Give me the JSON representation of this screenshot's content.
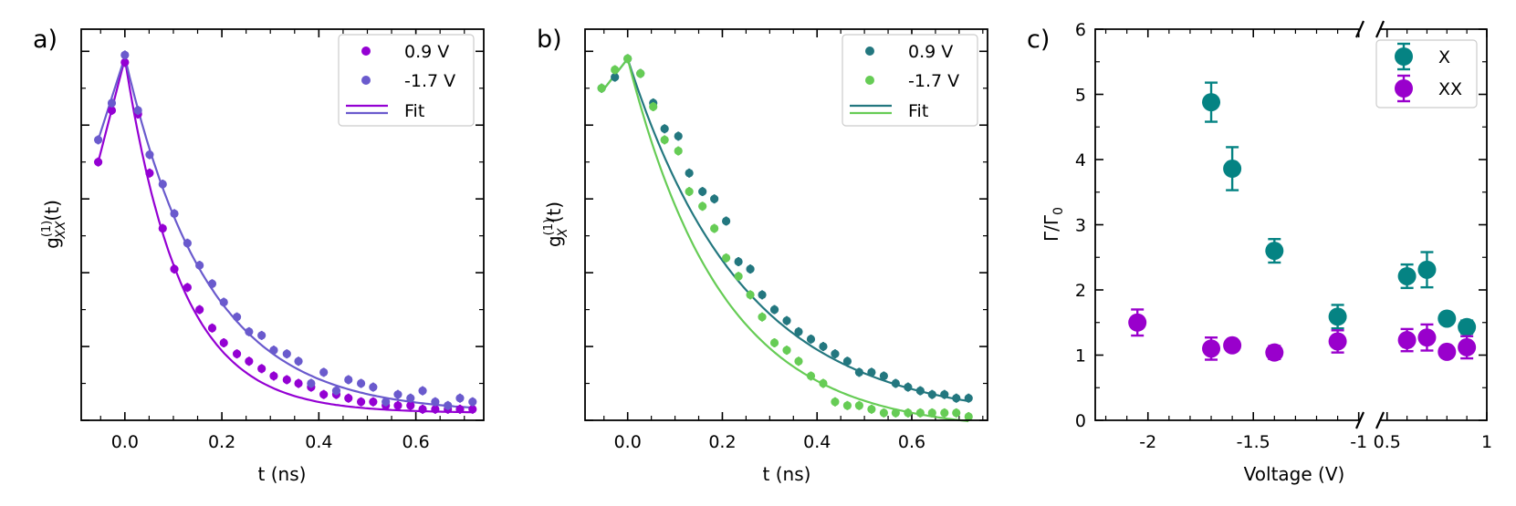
{
  "chart_data": [
    {
      "panel": "a)",
      "type": "scatter",
      "xlabel": "t (ns)",
      "ylabel": "g(1)XX(t)",
      "ylabel_parts": {
        "base": "g",
        "sup": "(1)",
        "sub": "XX",
        "tail": "(t)"
      },
      "xlim": [
        -0.09,
        0.74
      ],
      "ylim": [
        0.0,
        1.06
      ],
      "xticks": [
        0.0,
        0.2,
        0.4,
        0.6
      ],
      "xtick_labels": [
        "0.0",
        "0.2",
        "0.4",
        "0.6"
      ],
      "legend": {
        "position": "top-right",
        "fit_label": "Fit"
      },
      "series": [
        {
          "name": "0.9 V",
          "color": "#9400D3",
          "x": [
            -0.055,
            -0.027,
            0.0,
            0.027,
            0.051,
            0.078,
            0.102,
            0.129,
            0.154,
            0.18,
            0.204,
            0.231,
            0.256,
            0.282,
            0.307,
            0.334,
            0.358,
            0.384,
            0.41,
            0.436,
            0.461,
            0.487,
            0.512,
            0.538,
            0.563,
            0.589,
            0.614,
            0.64,
            0.666,
            0.691,
            0.717
          ],
          "y": [
            0.7,
            0.84,
            0.97,
            0.83,
            0.67,
            0.52,
            0.41,
            0.36,
            0.3,
            0.25,
            0.21,
            0.18,
            0.16,
            0.14,
            0.12,
            0.11,
            0.1,
            0.09,
            0.07,
            0.07,
            0.06,
            0.05,
            0.05,
            0.04,
            0.04,
            0.04,
            0.03,
            0.03,
            0.03,
            0.03,
            0.03
          ]
        },
        {
          "name": "-1.7 V",
          "color": "#6A5ACD",
          "x": [
            -0.055,
            -0.027,
            0.0,
            0.027,
            0.051,
            0.078,
            0.102,
            0.129,
            0.154,
            0.18,
            0.204,
            0.231,
            0.256,
            0.282,
            0.307,
            0.334,
            0.358,
            0.384,
            0.41,
            0.436,
            0.461,
            0.487,
            0.512,
            0.538,
            0.563,
            0.589,
            0.614,
            0.64,
            0.666,
            0.691,
            0.717
          ],
          "y": [
            0.76,
            0.86,
            0.99,
            0.84,
            0.72,
            0.64,
            0.56,
            0.48,
            0.42,
            0.37,
            0.32,
            0.28,
            0.24,
            0.23,
            0.19,
            0.18,
            0.16,
            0.1,
            0.13,
            0.08,
            0.11,
            0.1,
            0.09,
            0.05,
            0.07,
            0.06,
            0.08,
            0.05,
            0.04,
            0.06,
            0.05
          ]
        }
      ],
      "fit_lines": [
        {
          "series": "0.9 V",
          "color": "#9400D3",
          "peak": 0.98,
          "tau": 0.115,
          "rise_from": 0.7,
          "baseline": 0.02
        },
        {
          "series": "-1.7 V",
          "color": "#6A5ACD",
          "peak": 0.985,
          "tau": 0.17,
          "rise_from": 0.76,
          "baseline": 0.02
        }
      ]
    },
    {
      "panel": "b)",
      "type": "scatter",
      "xlabel": "t (ns)",
      "ylabel": "g(1)X(t)",
      "ylabel_parts": {
        "base": "g",
        "sup": "(1)",
        "sub": "X",
        "tail": "(t)"
      },
      "xlim": [
        -0.09,
        0.76
      ],
      "ylim": [
        0.0,
        1.06
      ],
      "xticks": [
        0.0,
        0.2,
        0.4,
        0.6
      ],
      "xtick_labels": [
        "0.0",
        "0.2",
        "0.4",
        "0.6"
      ],
      "legend": {
        "position": "top-right",
        "fit_label": "Fit"
      },
      "series": [
        {
          "name": "0.9 V",
          "color": "#23777F",
          "x": [
            -0.055,
            -0.027,
            0.0,
            0.027,
            0.054,
            0.078,
            0.107,
            0.13,
            0.158,
            0.183,
            0.208,
            0.234,
            0.259,
            0.284,
            0.31,
            0.336,
            0.361,
            0.387,
            0.413,
            0.438,
            0.464,
            0.489,
            0.515,
            0.541,
            0.566,
            0.592,
            0.618,
            0.643,
            0.669,
            0.694,
            0.72
          ],
          "y": [
            0.9,
            0.93,
            0.98,
            0.94,
            0.86,
            0.79,
            0.77,
            0.67,
            0.62,
            0.6,
            0.54,
            0.43,
            0.41,
            0.34,
            0.3,
            0.27,
            0.24,
            0.22,
            0.2,
            0.18,
            0.16,
            0.13,
            0.13,
            0.12,
            0.1,
            0.09,
            0.08,
            0.07,
            0.07,
            0.06,
            0.06
          ]
        },
        {
          "name": "-1.7 V",
          "color": "#66CC55",
          "x": [
            -0.055,
            -0.027,
            0.0,
            0.027,
            0.054,
            0.078,
            0.107,
            0.13,
            0.158,
            0.183,
            0.208,
            0.234,
            0.259,
            0.284,
            0.31,
            0.336,
            0.361,
            0.387,
            0.413,
            0.438,
            0.464,
            0.489,
            0.515,
            0.541,
            0.566,
            0.592,
            0.618,
            0.643,
            0.669,
            0.694,
            0.72
          ],
          "y": [
            0.9,
            0.95,
            0.98,
            0.94,
            0.85,
            0.76,
            0.73,
            0.62,
            0.58,
            0.52,
            0.44,
            0.39,
            0.34,
            0.28,
            0.21,
            0.19,
            0.16,
            0.12,
            0.1,
            0.05,
            0.04,
            0.04,
            0.03,
            0.02,
            0.02,
            0.02,
            0.02,
            0.02,
            0.02,
            0.02,
            0.01
          ]
        }
      ],
      "fit_lines": [
        {
          "series": "0.9 V",
          "color": "#23777F",
          "peak": 0.98,
          "tau": 0.245,
          "rise_from": 0.89,
          "baseline": 0.0
        },
        {
          "series": "-1.7 V",
          "color": "#66CC55",
          "peak": 0.98,
          "tau": 0.2,
          "rise_from": 0.89,
          "baseline": -0.03
        }
      ]
    },
    {
      "panel": "c)",
      "type": "scatter",
      "xlabel": "Voltage (V)",
      "ylabel": "Γ/Γ0",
      "ylabel_parts": {
        "base": "Γ/Γ",
        "sub": "0"
      },
      "ylim": [
        0,
        6
      ],
      "yticks": [
        0,
        1,
        2,
        3,
        4,
        5,
        6
      ],
      "broken_axis": {
        "left_segment": {
          "xlim": [
            -2.25,
            -0.99
          ],
          "xticks": [
            -2,
            -1.5,
            -1
          ],
          "xtick_labels": [
            "-2",
            "-1.5",
            "-1"
          ]
        },
        "right_segment": {
          "xlim": [
            0.46,
            1.0
          ],
          "xticks": [
            0.5,
            1
          ],
          "xtick_labels": [
            "0.5",
            "1"
          ]
        }
      },
      "legend": {
        "position": "top-right"
      },
      "series": [
        {
          "name": "X",
          "color": "#058383",
          "points": [
            {
              "x": -1.7,
              "y": 4.88,
              "err": 0.3
            },
            {
              "x": -1.6,
              "y": 3.86,
              "err": 0.33
            },
            {
              "x": -1.4,
              "y": 2.6,
              "err": 0.18
            },
            {
              "x": -1.1,
              "y": 1.59,
              "err": 0.18
            },
            {
              "x": 0.6,
              "y": 2.21,
              "err": 0.18
            },
            {
              "x": 0.7,
              "y": 2.31,
              "err": 0.27
            },
            {
              "x": 0.8,
              "y": 1.56,
              "err": 0.07
            },
            {
              "x": 0.9,
              "y": 1.43,
              "err": 0.1
            }
          ]
        },
        {
          "name": "XX",
          "color": "#9900CC",
          "points": [
            {
              "x": -2.05,
              "y": 1.5,
              "err": 0.2
            },
            {
              "x": -1.7,
              "y": 1.1,
              "err": 0.17
            },
            {
              "x": -1.6,
              "y": 1.15,
              "err": 0.07
            },
            {
              "x": -1.4,
              "y": 1.04,
              "err": 0.1
            },
            {
              "x": -1.1,
              "y": 1.21,
              "err": 0.17
            },
            {
              "x": 0.6,
              "y": 1.23,
              "err": 0.17
            },
            {
              "x": 0.7,
              "y": 1.27,
              "err": 0.2
            },
            {
              "x": 0.8,
              "y": 1.05,
              "err": 0.07
            },
            {
              "x": 0.9,
              "y": 1.12,
              "err": 0.17
            }
          ]
        }
      ]
    }
  ]
}
